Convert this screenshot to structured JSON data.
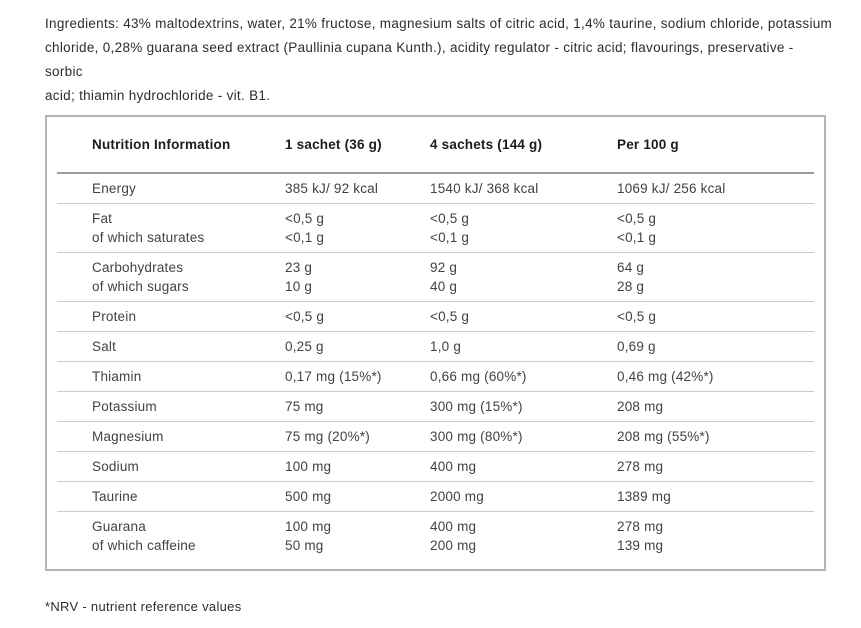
{
  "ingredients": {
    "lines": [
      "Ingredients: 43% maltodextrins, water, 21% fructose, magnesium salts of citric acid, 1,4% taurine, sodium chloride, potassium",
      "chloride, 0,28% guarana seed extract (Paullinia cupana Kunth.), acidity regulator - citric acid; flavourings, preservative - sorbic",
      "acid; thiamin hydrochloride - vit. B1."
    ]
  },
  "nutrition_table": {
    "columns": [
      "Nutrition Information",
      "1 sachet (36 g)",
      "4 sachets (144 g)",
      "Per 100 g"
    ],
    "rows": [
      {
        "cells": [
          [
            "Energy"
          ],
          [
            "385 kJ/ 92 kcal"
          ],
          [
            "1540 kJ/ 368 kcal"
          ],
          [
            "1069 kJ/ 256 kcal"
          ]
        ]
      },
      {
        "cells": [
          [
            "Fat",
            "of which saturates"
          ],
          [
            "<0,5 g",
            "<0,1 g"
          ],
          [
            "<0,5 g",
            "<0,1 g"
          ],
          [
            "<0,5 g",
            "<0,1 g"
          ]
        ]
      },
      {
        "cells": [
          [
            "Carbohydrates",
            "of which sugars"
          ],
          [
            "23 g",
            "10 g"
          ],
          [
            "92 g",
            "40 g"
          ],
          [
            "64 g",
            "28 g"
          ]
        ]
      },
      {
        "cells": [
          [
            "Protein"
          ],
          [
            "<0,5 g"
          ],
          [
            "<0,5 g"
          ],
          [
            "<0,5 g"
          ]
        ]
      },
      {
        "cells": [
          [
            "Salt"
          ],
          [
            "0,25 g"
          ],
          [
            "1,0 g"
          ],
          [
            "0,69 g"
          ]
        ]
      },
      {
        "cells": [
          [
            "Thiamin"
          ],
          [
            "0,17 mg (15%*)"
          ],
          [
            "0,66 mg (60%*)"
          ],
          [
            "0,46 mg (42%*)"
          ]
        ]
      },
      {
        "cells": [
          [
            "Potassium"
          ],
          [
            "75 mg"
          ],
          [
            "300 mg (15%*)"
          ],
          [
            "208 mg"
          ]
        ]
      },
      {
        "cells": [
          [
            "Magnesium"
          ],
          [
            "75 mg (20%*)"
          ],
          [
            "300 mg (80%*)"
          ],
          [
            "208 mg (55%*)"
          ]
        ]
      },
      {
        "cells": [
          [
            "Sodium"
          ],
          [
            "100 mg"
          ],
          [
            "400 mg"
          ],
          [
            "278 mg"
          ]
        ]
      },
      {
        "cells": [
          [
            "Taurine"
          ],
          [
            "500 mg"
          ],
          [
            "2000 mg"
          ],
          [
            "1389 mg"
          ]
        ]
      },
      {
        "cells": [
          [
            "Guarana",
            "of which caffeine"
          ],
          [
            "100 mg",
            "50 mg"
          ],
          [
            "400 mg",
            "200 mg"
          ],
          [
            "278 mg",
            "139 mg"
          ]
        ]
      }
    ]
  },
  "footnote": "*NRV - nutrient reference values",
  "colors": {
    "table_border": "#b5b5b5",
    "header_separator": "#9c9c9c",
    "row_separator": "#cccccc",
    "heading_text": "#1c1c1c",
    "body_text": "#424242"
  }
}
